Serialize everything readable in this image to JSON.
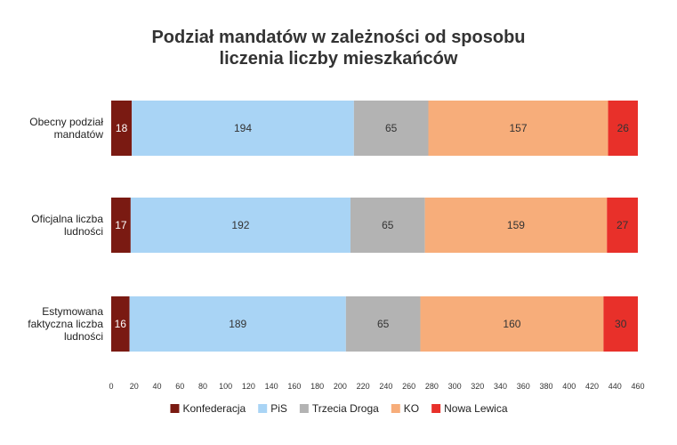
{
  "chart_data": {
    "type": "bar",
    "orientation": "horizontal",
    "stacked": true,
    "title_lines": [
      "Podział mandatów w zależności od sposobu",
      "liczenia liczby mieszkańców"
    ],
    "categories": [
      [
        "Obecny podział",
        "mandatów"
      ],
      [
        "Oficjalna liczba",
        "ludności"
      ],
      [
        "Estymowana",
        "faktyczna liczba",
        "ludności"
      ]
    ],
    "series": [
      {
        "name": "Konfederacja",
        "color": "#7a1a12",
        "label_color": "#ffffff",
        "values": [
          18,
          17,
          16
        ]
      },
      {
        "name": "PiS",
        "color": "#a9d4f5",
        "label_color": "#333333",
        "values": [
          194,
          192,
          189
        ]
      },
      {
        "name": "Trzecia Droga",
        "color": "#b3b3b3",
        "label_color": "#333333",
        "values": [
          65,
          65,
          65
        ]
      },
      {
        "name": "KO",
        "color": "#f7ad7a",
        "label_color": "#333333",
        "values": [
          157,
          159,
          160
        ]
      },
      {
        "name": "Nowa Lewica",
        "color": "#e8302a",
        "label_color": "#333333",
        "values": [
          26,
          27,
          30
        ]
      }
    ],
    "xlim": [
      0,
      460
    ],
    "xticks": [
      "0",
      "20",
      "40",
      "60",
      "80",
      "100",
      "120",
      "140",
      "160",
      "180",
      "200",
      "220",
      "240",
      "260",
      "280",
      "300",
      "320",
      "340",
      "360",
      "380",
      "400",
      "420",
      "440",
      "460"
    ],
    "grid": false,
    "legend_position": "bottom"
  }
}
